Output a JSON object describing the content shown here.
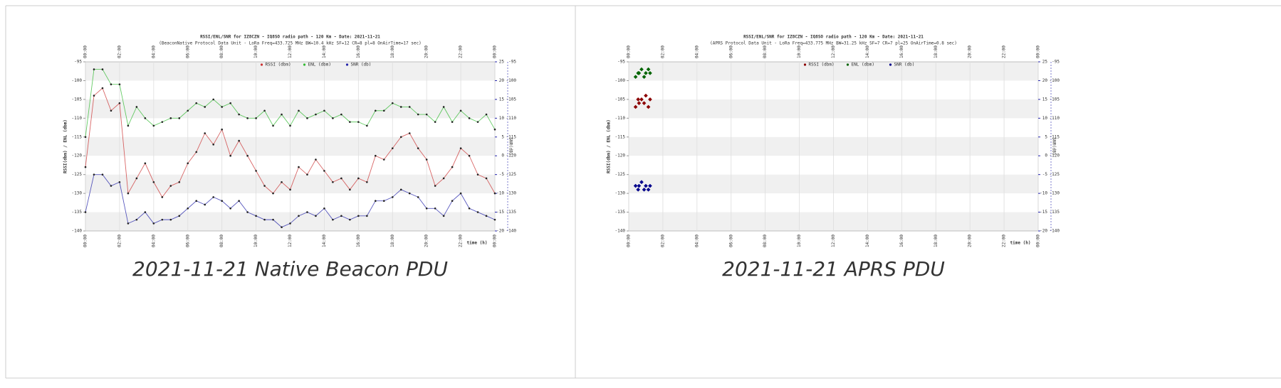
{
  "chart_data": [
    {
      "type": "line",
      "title": "RSSI/ENL/SNR for IZ8CZN - IQ8SO radio path - 120 Km - Date: 2021-11-21",
      "subtitle": "(BeaconNative Protocol Data Unit - LoRa Freq=433.725 MHz BW=10.4 kHz SF=12 CR=8 pl=8 OnAirTime=17 sec)",
      "caption": "2021-11-21 Native Beacon PDU",
      "xlabel": "time (h)",
      "ylabel": "RSSI(dbm) / ENL (dbm)",
      "y2label": "SNR(dB)",
      "legend": "top",
      "grid": true,
      "xlim": [
        0,
        24
      ],
      "xticks": [
        {
          "value": 0,
          "label": "00:00"
        },
        {
          "value": 2,
          "label": "02:00"
        },
        {
          "value": 4,
          "label": "04:00"
        },
        {
          "value": 6,
          "label": "06:00"
        },
        {
          "value": 8,
          "label": "08:00"
        },
        {
          "value": 10,
          "label": "10:00"
        },
        {
          "value": 12,
          "label": "12:00"
        },
        {
          "value": 14,
          "label": "14:00"
        },
        {
          "value": 16,
          "label": "16:00"
        },
        {
          "value": 18,
          "label": "18:00"
        },
        {
          "value": 20,
          "label": "20:00"
        },
        {
          "value": 22,
          "label": "22:00"
        },
        {
          "value": 24,
          "label": "00:00"
        }
      ],
      "ylim": [
        -140,
        -95
      ],
      "yticks": [
        -95,
        -100,
        -105,
        -110,
        -115,
        -120,
        -125,
        -130,
        -135,
        -140
      ],
      "y2lim": [
        -20,
        25
      ],
      "y2ticks": [
        25,
        20,
        15,
        10,
        5,
        0,
        -5,
        -10,
        -15,
        -20
      ],
      "x": [
        0,
        0.5,
        1,
        1.5,
        2,
        2.5,
        3,
        3.5,
        4,
        4.5,
        5,
        5.5,
        6,
        6.5,
        7,
        7.5,
        8,
        8.5,
        9,
        9.5,
        10,
        10.5,
        11,
        11.5,
        12,
        12.5,
        13,
        13.5,
        14,
        14.5,
        15,
        15.5,
        16,
        16.5,
        17,
        17.5,
        18,
        18.5,
        19,
        19.5,
        20,
        20.5,
        21,
        21.5,
        22,
        22.5,
        23,
        23.5,
        24
      ],
      "series": [
        {
          "name": "RSSI (dbm)",
          "color": "#cc3333",
          "values": [
            -123,
            -104,
            -102,
            -108,
            -106,
            -130,
            -126,
            -122,
            -127,
            -131,
            -128,
            -127,
            -122,
            -119,
            -114,
            -117,
            -113,
            -120,
            -116,
            -120,
            -124,
            -128,
            -130,
            -127,
            -129,
            -123,
            -125,
            -121,
            -124,
            -127,
            -126,
            -129,
            -126,
            -127,
            -120,
            -121,
            -118,
            -115,
            -114,
            -118,
            -121,
            -128,
            -126,
            -123,
            -118,
            -120,
            -125,
            -126,
            -130
          ]
        },
        {
          "name": "ENL (dbm)",
          "color": "#33bb33",
          "values": [
            -115,
            -97,
            -97,
            -101,
            -101,
            -112,
            -107,
            -110,
            -112,
            -111,
            -110,
            -110,
            -108,
            -106,
            -107,
            -105,
            -107,
            -106,
            -109,
            -110,
            -110,
            -108,
            -112,
            -109,
            -112,
            -108,
            -110,
            -109,
            -108,
            -110,
            -109,
            -111,
            -111,
            -112,
            -108,
            -108,
            -106,
            -107,
            -107,
            -109,
            -109,
            -111,
            -107,
            -111,
            -108,
            -110,
            -111,
            -109,
            -113
          ]
        },
        {
          "name": "SNR (db)",
          "color": "#2222aa",
          "axis": "y2",
          "values": [
            -15,
            -5,
            -5,
            -8,
            -7,
            -18,
            -17,
            -15,
            -18,
            -17,
            -17,
            -16,
            -14,
            -12,
            -13,
            -11,
            -12,
            -14,
            -12,
            -15,
            -16,
            -17,
            -17,
            -19,
            -18,
            -16,
            -15,
            -16,
            -14,
            -17,
            -16,
            -17,
            -16,
            -16,
            -12,
            -12,
            -11,
            -9,
            -10,
            -11,
            -14,
            -14,
            -16,
            -12,
            -10,
            -14,
            -15,
            -16,
            -17
          ]
        }
      ]
    },
    {
      "type": "scatter",
      "title": "RSSI/ENL/SNR for IZ8CZN - IQ8SO radio path - 120 Km - Date: 2021-11-21",
      "subtitle": "(APRS Protocol Data Unit - LoRa Freq=433.775 MHz BW=31.25 kHz SF=7 CR=7 pl=25 OnAirTime=0.8 sec)",
      "caption": "2021-11-21 APRS PDU",
      "xlabel": "time (h)",
      "ylabel": "RSSI(dbm) / ENL (dbm)",
      "y2label": "SNR(dB)",
      "legend": "top",
      "grid": true,
      "xlim": [
        0,
        24
      ],
      "xticks": [
        {
          "value": 0,
          "label": "00:00"
        },
        {
          "value": 2,
          "label": "02:00"
        },
        {
          "value": 4,
          "label": "04:00"
        },
        {
          "value": 6,
          "label": "06:00"
        },
        {
          "value": 8,
          "label": "08:00"
        },
        {
          "value": 10,
          "label": "10:00"
        },
        {
          "value": 12,
          "label": "12:00"
        },
        {
          "value": 14,
          "label": "14:00"
        },
        {
          "value": 16,
          "label": "16:00"
        },
        {
          "value": 18,
          "label": "18:00"
        },
        {
          "value": 20,
          "label": "20:00"
        },
        {
          "value": 22,
          "label": "22:00"
        },
        {
          "value": 24,
          "label": "00:00"
        }
      ],
      "ylim": [
        -140,
        -95
      ],
      "yticks": [
        -95,
        -100,
        -105,
        -110,
        -115,
        -120,
        -125,
        -130,
        -135,
        -140
      ],
      "y2lim": [
        -20,
        25
      ],
      "y2ticks": [
        25,
        20,
        15,
        10,
        5,
        0,
        -5,
        -10,
        -15,
        -20
      ],
      "x": [
        0.4,
        0.55,
        0.6,
        0.75,
        0.9,
        1.0,
        1.15,
        1.25
      ],
      "series": [
        {
          "name": "RSSI (dbm)",
          "color": "#8b0000",
          "values": [
            -107,
            -105,
            -106,
            -105,
            -106,
            -104,
            -107,
            -105
          ]
        },
        {
          "name": "ENL (dbm)",
          "color": "#006400",
          "values": [
            -99,
            -98,
            -98,
            -97,
            -99,
            -98,
            -97,
            -98
          ]
        },
        {
          "name": "SNR (db)",
          "color": "#00008b",
          "axis": "y2",
          "values": [
            -8,
            -9,
            -8,
            -7,
            -9,
            -8,
            -9,
            -8
          ]
        }
      ]
    }
  ]
}
